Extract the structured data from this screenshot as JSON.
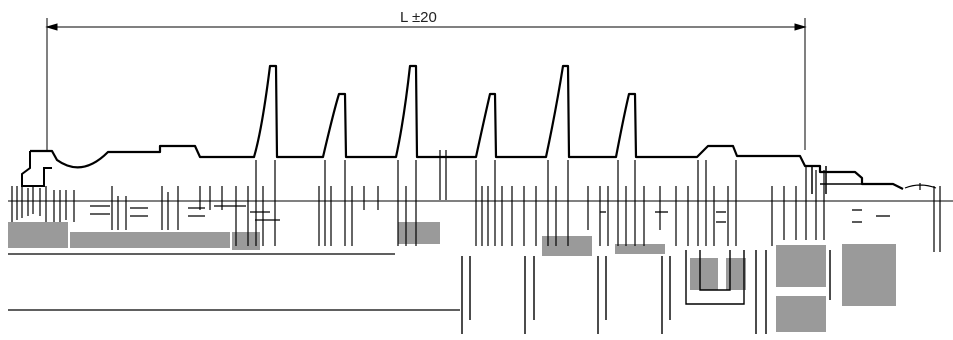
{
  "drawing": {
    "dimension_label": "L ±20",
    "colors": {
      "line": "#000000",
      "hatch": "#9a9a9a",
      "background": "#ffffff"
    }
  }
}
